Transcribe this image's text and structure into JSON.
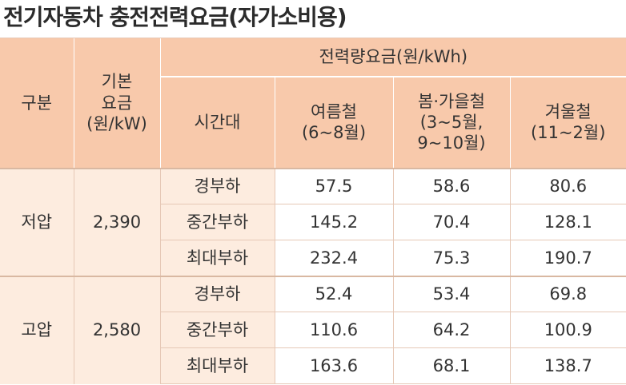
{
  "title": "전기자동차 충전전력요금(자가소비용)",
  "header": {
    "category": "구분",
    "base_rate_line1": "기본",
    "base_rate_line2": "요금",
    "base_rate_unit": "(원/kW)",
    "energy_rate": "전력량요금(원/kWh)",
    "time_slot": "시간대",
    "summer_line1": "여름철",
    "summer_line2": "(6~8월)",
    "spring_fall_line1": "봄·가을철",
    "spring_fall_line2": "(3~5월,",
    "spring_fall_line3": "9~10월)",
    "winter_line1": "겨울철",
    "winter_line2": "(11~2월)"
  },
  "groups": [
    {
      "name": "저압",
      "base": "2,390",
      "rows": [
        {
          "slot": "경부하",
          "summer": "57.5",
          "spring_fall": "58.6",
          "winter": "80.6"
        },
        {
          "slot": "중간부하",
          "summer": "145.2",
          "spring_fall": "70.4",
          "winter": "128.1"
        },
        {
          "slot": "최대부하",
          "summer": "232.4",
          "spring_fall": "75.3",
          "winter": "190.7"
        }
      ]
    },
    {
      "name": "고압",
      "base": "2,580",
      "rows": [
        {
          "slot": "경부하",
          "summer": "52.4",
          "spring_fall": "53.4",
          "winter": "69.8"
        },
        {
          "slot": "중간부하",
          "summer": "110.6",
          "spring_fall": "64.2",
          "winter": "100.9"
        },
        {
          "slot": "최대부하",
          "summer": "163.6",
          "spring_fall": "68.1",
          "winter": "138.7"
        }
      ]
    }
  ],
  "colors": {
    "header_bg": "#f8c9ab",
    "group_bg": "#fdecdf",
    "cell_bg": "#ffffff",
    "rule": "#e6c8b6"
  }
}
